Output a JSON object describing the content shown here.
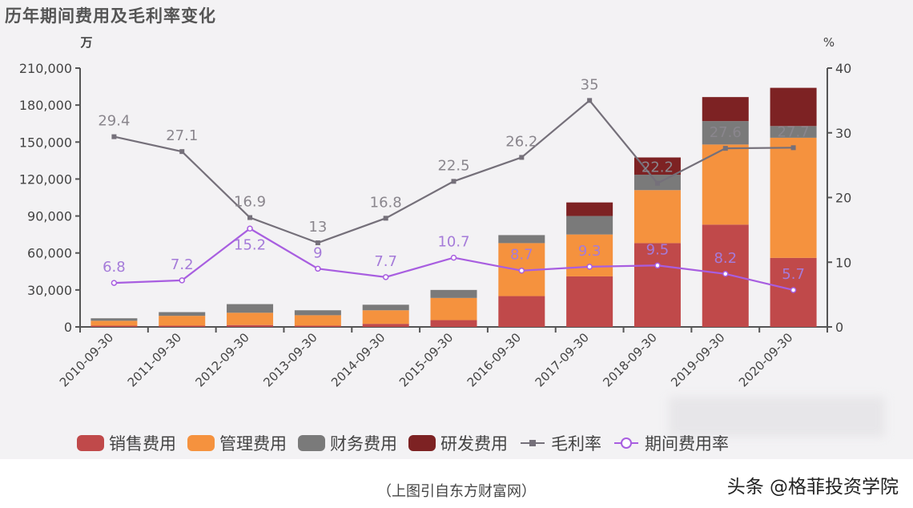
{
  "chart_data": {
    "type": "bar",
    "title": "历年期间费用及毛利率变化",
    "y_left_unit": "万",
    "y_right_unit": "%",
    "ylim_left": [
      0,
      210000
    ],
    "yticks_left": [
      "0",
      "30,000",
      "60,000",
      "90,000",
      "120,000",
      "150,000",
      "180,000",
      "210,000"
    ],
    "ylim_right": [
      0,
      40
    ],
    "yticks_right": [
      "0",
      "10",
      "20",
      "30",
      "40"
    ],
    "grid": false,
    "legend_position": "bottom",
    "categories": [
      "2010-09-30",
      "2011-09-30",
      "2012-09-30",
      "2013-09-30",
      "2014-09-30",
      "2015-09-30",
      "2016-09-30",
      "2017-09-30",
      "2018-09-30",
      "2019-09-30",
      "2020-09-30"
    ],
    "series": [
      {
        "name": "销售费用",
        "kind": "stacked-bar",
        "color": "#c0494a",
        "values": [
          1000,
          1000,
          1500,
          1000,
          2500,
          5500,
          25000,
          41000,
          68000,
          83000,
          56000
        ]
      },
      {
        "name": "管理费用",
        "kind": "stacked-bar",
        "color": "#f5923e",
        "values": [
          4000,
          8000,
          10000,
          8500,
          11000,
          18000,
          43000,
          34000,
          43000,
          65000,
          97500
        ]
      },
      {
        "name": "财务费用",
        "kind": "stacked-bar",
        "color": "#7a7a7a",
        "values": [
          2000,
          3000,
          7000,
          4000,
          4500,
          6500,
          6500,
          15000,
          12500,
          19000,
          9500
        ]
      },
      {
        "name": "研发费用",
        "kind": "stacked-bar",
        "color": "#7d2223",
        "values": [
          0,
          0,
          0,
          0,
          0,
          0,
          0,
          11000,
          14000,
          19500,
          31000
        ]
      },
      {
        "name": "毛利率",
        "kind": "line",
        "axis": "right",
        "color": "#75707a",
        "values": [
          29.4,
          27.1,
          16.9,
          13,
          16.8,
          22.5,
          26.2,
          35,
          22.2,
          27.6,
          27.7
        ],
        "labels": [
          "29.4",
          "27.1",
          "16.9",
          "13",
          "16.8",
          "22.5",
          "26.2",
          "35",
          "22.2",
          "27.6",
          "27.7"
        ]
      },
      {
        "name": "期间费用率",
        "kind": "line",
        "axis": "right",
        "color": "#a85ee0",
        "values": [
          6.8,
          7.2,
          15.2,
          9,
          7.7,
          10.7,
          8.7,
          9.3,
          9.5,
          8.2,
          5.7
        ],
        "labels": [
          "6.8",
          "7.2",
          "15.2",
          "9",
          "7.7",
          "10.7",
          "8.7",
          "9.3",
          "9.5",
          "8.2",
          "5.7"
        ]
      }
    ]
  },
  "caption": "（上图引自东方财富网）",
  "watermark": "头条 @格菲投资学院"
}
